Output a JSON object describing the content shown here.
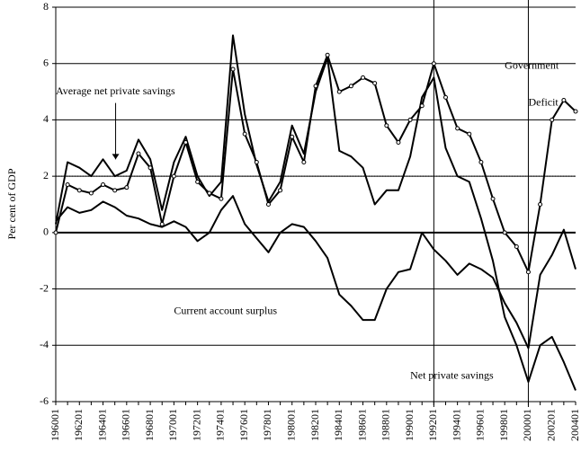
{
  "chart_data": {
    "type": "line",
    "y_label": "Per cent of GDP",
    "categories": [
      "196001",
      null,
      "196201",
      null,
      "196401",
      null,
      "196601",
      null,
      "196801",
      null,
      "197001",
      null,
      "197201",
      null,
      "197401",
      null,
      "197601",
      null,
      "197801",
      null,
      "198001",
      null,
      "198201",
      null,
      "198401",
      null,
      "198601",
      null,
      "198801",
      null,
      "199001",
      null,
      "199201",
      null,
      "199401",
      null,
      "199601",
      null,
      "199801",
      null,
      "200001",
      null,
      "200201",
      null,
      "200401"
    ],
    "series": [
      {
        "name": "Net private savings",
        "color": "#000000",
        "markers": false,
        "values": [
          0.3,
          2.5,
          2.3,
          2.0,
          2.6,
          2.0,
          2.2,
          3.3,
          2.6,
          0.8,
          2.5,
          3.4,
          2.0,
          1.3,
          1.8,
          7.0,
          4.2,
          2.4,
          1.1,
          1.8,
          3.8,
          2.8,
          5.0,
          6.2,
          2.9,
          2.7,
          2.3,
          1.0,
          1.5,
          1.5,
          2.7,
          4.8,
          5.5,
          3.0,
          2.0,
          1.8,
          0.5,
          -1.0,
          -3.0,
          -4.0,
          -5.3,
          -4.0,
          -3.7,
          -4.6,
          -5.6
        ]
      },
      {
        "name": "Government Deficit",
        "color": "#000000",
        "markers": true,
        "values": [
          0.0,
          1.7,
          1.5,
          1.4,
          1.7,
          1.5,
          1.6,
          2.8,
          2.3,
          0.3,
          2.0,
          3.2,
          1.8,
          1.4,
          1.2,
          5.8,
          3.5,
          2.5,
          1.0,
          1.5,
          3.4,
          2.5,
          5.2,
          6.3,
          5.0,
          5.2,
          5.5,
          5.3,
          3.8,
          3.2,
          4.0,
          4.5,
          6.0,
          4.8,
          3.7,
          3.5,
          2.5,
          1.2,
          0.0,
          -0.5,
          -1.4,
          1.0,
          4.0,
          4.7,
          4.3
        ]
      },
      {
        "name": "Current account surplus",
        "color": "#000000",
        "markers": false,
        "values": [
          0.4,
          0.9,
          0.7,
          0.8,
          1.1,
          0.9,
          0.6,
          0.5,
          0.3,
          0.2,
          0.4,
          0.2,
          -0.3,
          0.0,
          0.8,
          1.3,
          0.3,
          -0.2,
          -0.7,
          0.0,
          0.3,
          0.2,
          -0.3,
          -0.9,
          -2.2,
          -2.6,
          -3.1,
          -3.1,
          -2.0,
          -1.4,
          -1.3,
          0.0,
          -0.6,
          -1.0,
          -1.5,
          -1.1,
          -1.3,
          -1.6,
          -2.5,
          -3.2,
          -4.1,
          -1.5,
          -0.8,
          0.1,
          -1.3
        ]
      }
    ],
    "reference_line": 2,
    "vlines": [
      "199201",
      "200001"
    ],
    "annotations": [
      {
        "text": "Average net private savings",
        "x": "196001",
        "y": 5
      },
      {
        "text": "Current account surplus",
        "x": "197001",
        "y": -2.8
      },
      {
        "text": "Net private savings",
        "x": "199001",
        "y": -5.1
      },
      {
        "text": "Government",
        "x": "199801",
        "y": 5.9
      },
      {
        "text": "Deficit",
        "x": "200001",
        "y": 4.6
      }
    ],
    "ylim": [
      -6,
      8
    ],
    "yticks": [
      -6,
      -4,
      -2,
      0,
      2,
      4,
      6,
      8
    ],
    "grid": true
  }
}
